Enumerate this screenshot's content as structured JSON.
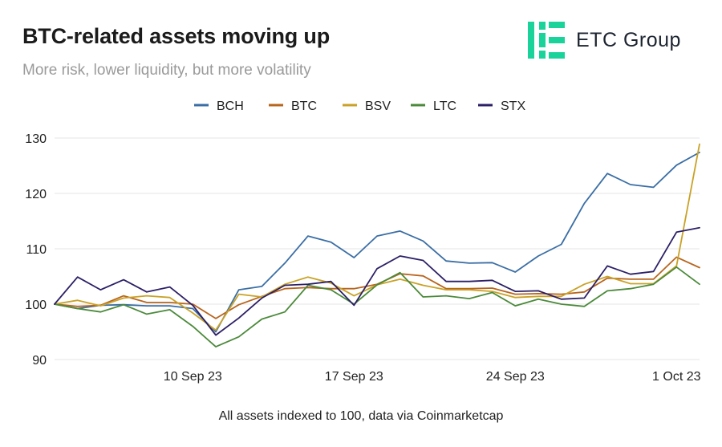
{
  "header": {
    "title": "BTC-related assets moving up",
    "subtitle": "More risk, lower liquidity, but more volatility"
  },
  "logo": {
    "text": "ETC Group",
    "color": "#19d39a"
  },
  "footer": {
    "note": "All assets indexed to 100, data via Coinmarketcap"
  },
  "chart_data": {
    "type": "line",
    "title": "BTC-related assets moving up",
    "subtitle": "More risk, lower liquidity, but more volatility",
    "xlabel": "",
    "ylabel": "",
    "ylim": [
      90,
      130
    ],
    "yticks": [
      90,
      100,
      110,
      120,
      130
    ],
    "grid": true,
    "legend_position": "top-center",
    "x": [
      "4 Sep 23",
      "5 Sep 23",
      "6 Sep 23",
      "7 Sep 23",
      "8 Sep 23",
      "9 Sep 23",
      "10 Sep 23",
      "11 Sep 23",
      "12 Sep 23",
      "13 Sep 23",
      "14 Sep 23",
      "15 Sep 23",
      "16 Sep 23",
      "17 Sep 23",
      "18 Sep 23",
      "19 Sep 23",
      "20 Sep 23",
      "21 Sep 23",
      "22 Sep 23",
      "23 Sep 23",
      "24 Sep 23",
      "25 Sep 23",
      "26 Sep 23",
      "27 Sep 23",
      "28 Sep 23",
      "29 Sep 23",
      "30 Sep 23",
      "1 Oct 23",
      "2 Oct 23"
    ],
    "xtick_labels": [
      {
        "index": 6,
        "label": "10 Sep 23"
      },
      {
        "index": 13,
        "label": "17 Sep 23"
      },
      {
        "index": 20,
        "label": "24 Sep 23"
      },
      {
        "index": 27,
        "label": "1 Oct 23"
      }
    ],
    "series": [
      {
        "name": "BCH",
        "color": "#3a6ea5",
        "values": [
          100,
          99.2,
          99.8,
          99.9,
          99.7,
          99.7,
          99.2,
          95.0,
          102.6,
          103.2,
          107.4,
          112.3,
          111.2,
          108.4,
          112.3,
          113.2,
          111.4,
          107.8,
          107.4,
          107.5,
          105.8,
          108.7,
          110.8,
          118.2,
          123.6,
          121.6,
          121.1,
          125.1,
          127.4
        ]
      },
      {
        "name": "BTC",
        "color": "#b8651e",
        "values": [
          100,
          99.6,
          99.8,
          101.5,
          100.3,
          100.3,
          100.0,
          97.4,
          99.9,
          101.4,
          102.8,
          103.0,
          102.8,
          102.8,
          103.6,
          105.5,
          105.1,
          102.8,
          102.8,
          102.9,
          101.8,
          101.9,
          101.8,
          102.2,
          104.7,
          104.5,
          104.5,
          108.5,
          106.6
        ]
      },
      {
        "name": "BSV",
        "color": "#c9a227",
        "values": [
          100,
          100.7,
          99.7,
          101.1,
          101.5,
          101.2,
          98.4,
          95.3,
          101.8,
          101.3,
          103.6,
          104.9,
          103.8,
          101.5,
          103.5,
          104.5,
          103.4,
          102.6,
          102.6,
          102.3,
          101.2,
          101.4,
          101.4,
          103.6,
          105.0,
          103.7,
          103.7,
          106.9,
          128.9
        ]
      },
      {
        "name": "LTC",
        "color": "#4b8a3a",
        "values": [
          100,
          99.2,
          98.6,
          99.9,
          98.2,
          99.0,
          96.0,
          92.3,
          94.1,
          97.3,
          98.6,
          103.4,
          102.6,
          100.0,
          103.5,
          105.7,
          101.3,
          101.5,
          101.0,
          102.1,
          99.7,
          100.9,
          100.0,
          99.6,
          102.4,
          102.8,
          103.6,
          106.7,
          103.6
        ]
      },
      {
        "name": "STX",
        "color": "#2c1f66",
        "values": [
          100,
          104.9,
          102.6,
          104.4,
          102.2,
          103.1,
          99.8,
          94.4,
          97.5,
          101.1,
          103.4,
          103.6,
          104.1,
          99.8,
          106.4,
          108.7,
          107.9,
          104.1,
          104.1,
          104.3,
          102.3,
          102.4,
          100.9,
          101.1,
          106.9,
          105.4,
          105.9,
          113.0,
          113.8
        ]
      }
    ]
  }
}
